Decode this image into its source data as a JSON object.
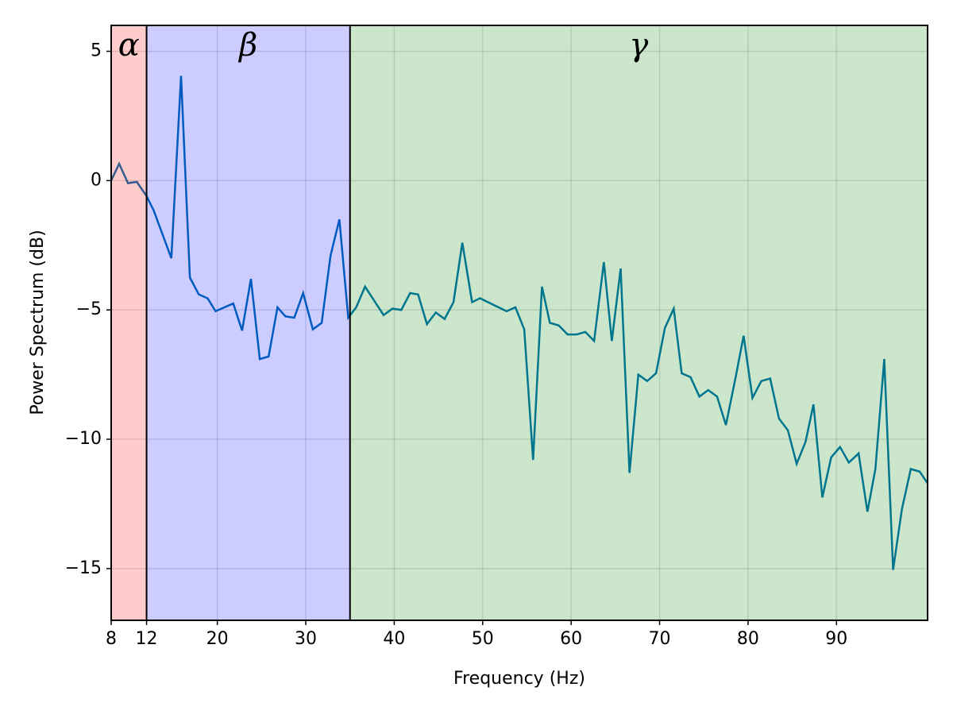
{
  "chart_data": {
    "type": "line",
    "xlabel": "Frequency (Hz)",
    "ylabel": "Power Spectrum (dB)",
    "x": [
      8,
      8.9,
      9.9,
      10.9,
      12,
      12.8,
      14.8,
      15.9,
      16.9,
      17.9,
      18.9,
      19.8,
      21.8,
      22.8,
      23.8,
      24.8,
      25.8,
      26.8,
      27.7,
      28.7,
      29.7,
      30.8,
      31.8,
      32.8,
      33.8,
      34.8,
      35.7,
      36.7,
      38.8,
      39.8,
      40.8,
      41.8,
      42.7,
      43.7,
      44.7,
      45.7,
      46.7,
      47.7,
      48.8,
      49.7,
      52.7,
      53.7,
      54.7,
      55.7,
      56.7,
      57.6,
      58.6,
      59.6,
      60.6,
      61.6,
      62.6,
      63.7,
      64.6,
      65.6,
      66.6,
      67.6,
      68.6,
      69.6,
      70.6,
      71.6,
      72.5,
      73.5,
      74.5,
      75.5,
      76.5,
      77.5,
      78.6,
      79.5,
      80.5,
      81.5,
      82.5,
      83.5,
      84.5,
      85.5,
      86.5,
      87.4,
      88.4,
      89.4,
      90.4,
      91.4,
      92.5,
      93.5,
      94.4,
      95.4,
      96.4,
      97.4,
      98.4,
      99.4,
      100.3
    ],
    "series": [
      {
        "color": "#0072b2",
        "values": [
          0,
          0.65,
          -0.1,
          -0.05,
          -0.6,
          -1.15,
          -3.0,
          4.05,
          -3.75,
          -4.4,
          -4.55,
          -5.05,
          -4.75,
          -5.8,
          -3.8,
          -6.9,
          -6.8,
          -4.9,
          -5.25,
          -5.3,
          -4.35,
          -5.75,
          -5.5,
          -2.9,
          -1.5,
          -5.3,
          -4.9,
          -4.1,
          -5.2,
          -4.95,
          -5.0,
          -4.35,
          -4.4,
          -5.55,
          -5.1,
          -5.35,
          -4.7,
          -2.4,
          -4.7,
          -4.55,
          -5.05,
          -4.9,
          -5.75,
          -10.8,
          -4.1,
          -5.5,
          -5.6,
          -5.95,
          -5.95,
          -5.85,
          -6.2,
          -3.15,
          -6.2,
          -3.4,
          -11.3,
          -7.5,
          -7.75,
          -7.45,
          -5.7,
          -4.95,
          -7.45,
          -7.6,
          -8.35,
          -8.1,
          -8.35,
          -9.45,
          -7.6,
          -6.0,
          -8.4,
          -7.75,
          -7.65,
          -9.2,
          -9.65,
          -10.95,
          -10.1,
          -8.65,
          -12.25,
          -10.7,
          -10.3,
          -10.9,
          -10.55,
          -12.8,
          -11.15,
          -6.9,
          -15.05,
          -12.7,
          -11.15,
          -11.25,
          -11.7
        ]
      }
    ],
    "bands": [
      {
        "label": "α",
        "from": 8,
        "to": 12,
        "color": "#ff0000"
      },
      {
        "label": "β",
        "from": 12,
        "to": 35,
        "color": "#0000ff"
      },
      {
        "label": "γ",
        "from": 35,
        "to": 100.3,
        "color": "#008000"
      }
    ],
    "xlim": [
      8,
      100.3
    ],
    "ylim": [
      -17,
      6
    ],
    "xticks": [
      8,
      12,
      20,
      30,
      40,
      50,
      60,
      70,
      80,
      90
    ],
    "yticks": [
      {
        "value": -15,
        "label": "−15"
      },
      {
        "value": -10,
        "label": "−10"
      },
      {
        "value": -5,
        "label": "−5"
      },
      0,
      5
    ],
    "grid": true
  }
}
